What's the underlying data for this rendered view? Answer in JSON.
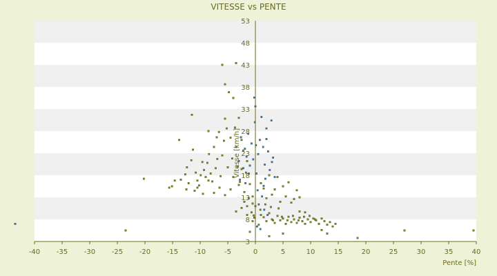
{
  "chart_data": {
    "type": "scatter",
    "title": "VITESSE vs PENTE",
    "xlabel": "Pente [%]",
    "ylabel": "Vitesse [km/h]",
    "xlim": [
      -40,
      40
    ],
    "ylim": [
      3,
      53
    ],
    "xticks": [
      -40,
      -35,
      -30,
      -25,
      -20,
      -15,
      -10,
      -5,
      0,
      5,
      10,
      15,
      20,
      25,
      30,
      35,
      40
    ],
    "yticks": [
      3,
      8,
      13,
      18,
      23,
      28,
      33,
      38,
      43,
      48,
      53
    ],
    "ytick_labels": [
      "3",
      "8",
      "13",
      "18",
      "23",
      "28",
      "33",
      "38",
      "43",
      "48",
      "53"
    ],
    "grid": "horizontal alternating bands",
    "colors": {
      "background": "#eef2d6",
      "plot_band_light": "#ffffff",
      "plot_band_dark": "#f0f0f0",
      "axis": "#6b6b1a",
      "series_olive": "#7d8a12",
      "series_blue": "#2f7fd0"
    },
    "series": [
      {
        "color": "#7d8a12",
        "points": [
          [
            -23.5,
            5.5
          ],
          [
            -20.2,
            17.2
          ],
          [
            -15.6,
            15.2
          ],
          [
            -15.1,
            15.5
          ],
          [
            -14.6,
            16.8
          ],
          [
            -13.8,
            26.0
          ],
          [
            -13.5,
            17.0
          ],
          [
            -12.7,
            18.2
          ],
          [
            -12.4,
            19.8
          ],
          [
            -12.1,
            16.2
          ],
          [
            -11.6,
            21.4
          ],
          [
            -11.3,
            23.8
          ],
          [
            -10.8,
            18.6
          ],
          [
            -10.5,
            16.8
          ],
          [
            -10.2,
            15.7
          ],
          [
            -9.9,
            18.0
          ],
          [
            -9.6,
            21.0
          ],
          [
            -9.3,
            19.2
          ],
          [
            -9.0,
            17.6
          ],
          [
            -8.7,
            20.8
          ],
          [
            -8.4,
            22.8
          ],
          [
            -8.1,
            18.4
          ],
          [
            -7.8,
            16.6
          ],
          [
            -7.5,
            24.4
          ],
          [
            -7.2,
            19.6
          ],
          [
            -6.9,
            21.7
          ],
          [
            -6.6,
            27.8
          ],
          [
            -6.3,
            17.8
          ],
          [
            -6.0,
            22.5
          ],
          [
            -5.7,
            25.8
          ],
          [
            -5.5,
            30.8
          ],
          [
            -5.2,
            28.6
          ],
          [
            -5.0,
            19.8
          ],
          [
            -4.8,
            36.8
          ],
          [
            -4.5,
            26.5
          ],
          [
            -4.2,
            21.8
          ],
          [
            -4.0,
            17.6
          ],
          [
            -3.7,
            28.8
          ],
          [
            -3.5,
            24.4
          ],
          [
            -3.2,
            20.0
          ],
          [
            -3.0,
            31.0
          ],
          [
            -2.8,
            16.5
          ],
          [
            -2.5,
            19.4
          ],
          [
            -2.2,
            23.6
          ],
          [
            -2.0,
            14.2
          ],
          [
            -1.7,
            18.6
          ],
          [
            -1.5,
            21.2
          ],
          [
            -1.2,
            12.8
          ],
          [
            -1.0,
            16.0
          ],
          [
            -0.7,
            9.6
          ],
          [
            -0.5,
            13.2
          ],
          [
            -0.2,
            8.4
          ],
          [
            0.0,
            11.0
          ],
          [
            -6.0,
            43.0
          ],
          [
            -3.5,
            43.4
          ],
          [
            -5.5,
            38.6
          ],
          [
            -4.0,
            35.5
          ],
          [
            -11.5,
            31.7
          ],
          [
            -8.5,
            28.0
          ],
          [
            -7.0,
            26.6
          ],
          [
            -2.5,
            26.0
          ],
          [
            -1.5,
            9.0
          ],
          [
            -1.0,
            5.2
          ],
          [
            -0.5,
            7.6
          ],
          [
            -2.0,
            12.0
          ],
          [
            -3.0,
            15.8
          ],
          [
            -4.5,
            14.8
          ],
          [
            -5.5,
            13.5
          ],
          [
            -6.5,
            15.2
          ],
          [
            -7.5,
            14.0
          ],
          [
            -8.5,
            16.8
          ],
          [
            -9.5,
            13.8
          ],
          [
            -10.5,
            15.2
          ],
          [
            -11.0,
            14.5
          ],
          [
            -12.5,
            14.8
          ],
          [
            1.0,
            16.2
          ],
          [
            1.5,
            15.0
          ],
          [
            2.0,
            12.8
          ],
          [
            2.5,
            18.0
          ],
          [
            3.0,
            13.6
          ],
          [
            3.5,
            14.8
          ],
          [
            4.0,
            17.6
          ],
          [
            4.5,
            12.0
          ],
          [
            5.0,
            15.5
          ],
          [
            5.5,
            13.2
          ],
          [
            6.0,
            16.4
          ],
          [
            6.5,
            11.8
          ],
          [
            7.0,
            12.6
          ],
          [
            7.5,
            14.6
          ],
          [
            8.0,
            13.0
          ],
          [
            1.0,
            9.0
          ],
          [
            1.5,
            8.5
          ],
          [
            2.0,
            7.6
          ],
          [
            2.5,
            9.4
          ],
          [
            3.0,
            8.0
          ],
          [
            3.5,
            7.2
          ],
          [
            4.0,
            8.8
          ],
          [
            4.5,
            7.8
          ],
          [
            5.0,
            8.2
          ],
          [
            5.5,
            7.0
          ],
          [
            6.0,
            8.6
          ],
          [
            6.5,
            7.4
          ],
          [
            7.0,
            8.0
          ],
          [
            7.5,
            7.2
          ],
          [
            8.0,
            8.4
          ],
          [
            8.5,
            7.6
          ],
          [
            9.0,
            7.0
          ],
          [
            9.5,
            8.0
          ],
          [
            10.0,
            7.4
          ],
          [
            10.5,
            8.2
          ],
          [
            11.0,
            7.8
          ],
          [
            11.5,
            7.0
          ],
          [
            12.0,
            8.2
          ],
          [
            12.5,
            7.6
          ],
          [
            13.0,
            6.8
          ],
          [
            13.5,
            7.4
          ],
          [
            14.0,
            6.4
          ],
          [
            14.5,
            7.0
          ],
          [
            3.2,
            7.8
          ],
          [
            4.8,
            8.6
          ],
          [
            5.8,
            7.8
          ],
          [
            6.8,
            8.8
          ],
          [
            7.8,
            7.8
          ],
          [
            8.8,
            8.6
          ],
          [
            9.8,
            8.8
          ],
          [
            10.8,
            8.0
          ],
          [
            12.0,
            5.6
          ],
          [
            13.0,
            4.8
          ],
          [
            5.0,
            4.8
          ],
          [
            2.5,
            4.2
          ],
          [
            18.5,
            3.8
          ],
          [
            27.0,
            5.5
          ],
          [
            39.5,
            5.5
          ],
          [
            8.0,
            9.8
          ],
          [
            9.0,
            9.6
          ],
          [
            4.2,
            10.5
          ],
          [
            2.8,
            10.8
          ],
          [
            1.8,
            11.4
          ],
          [
            -0.5,
            11.6
          ],
          [
            -1.5,
            11.0
          ],
          [
            -2.5,
            10.6
          ],
          [
            -3.5,
            9.8
          ],
          [
            -0.3,
            8.9
          ],
          [
            0.6,
            6.8
          ],
          [
            0.9,
            10.2
          ]
        ]
      },
      {
        "color": "#2f7fd0",
        "points": [
          [
            -43.5,
            7.0
          ],
          [
            -3.0,
            21.2
          ],
          [
            -2.6,
            26.6
          ],
          [
            -2.2,
            19.6
          ],
          [
            -1.9,
            24.0
          ],
          [
            -1.6,
            22.2
          ],
          [
            -1.3,
            27.4
          ],
          [
            -1.0,
            20.2
          ],
          [
            -0.7,
            25.2
          ],
          [
            -0.4,
            21.6
          ],
          [
            -0.1,
            30.0
          ],
          [
            0.2,
            18.4
          ],
          [
            0.5,
            22.8
          ],
          [
            0.8,
            26.0
          ],
          [
            1.1,
            31.2
          ],
          [
            1.4,
            24.4
          ],
          [
            1.7,
            20.4
          ],
          [
            2.0,
            28.6
          ],
          [
            2.3,
            23.4
          ],
          [
            2.6,
            19.2
          ],
          [
            2.9,
            30.4
          ],
          [
            3.2,
            22.0
          ],
          [
            3.5,
            17.6
          ],
          [
            -0.2,
            35.6
          ],
          [
            0.0,
            33.6
          ],
          [
            -2.8,
            17.0
          ],
          [
            -1.8,
            16.2
          ],
          [
            0.4,
            14.6
          ],
          [
            1.2,
            13.2
          ],
          [
            0.6,
            11.4
          ],
          [
            1.6,
            10.2
          ],
          [
            2.2,
            9.0
          ],
          [
            0.3,
            6.4
          ],
          [
            0.9,
            5.8
          ],
          [
            2.0,
            26.2
          ],
          [
            3.0,
            21.0
          ],
          [
            1.5,
            15.6
          ],
          [
            -1.2,
            18.4
          ],
          [
            0.1,
            24.8
          ],
          [
            1.8,
            17.2
          ]
        ]
      }
    ]
  }
}
